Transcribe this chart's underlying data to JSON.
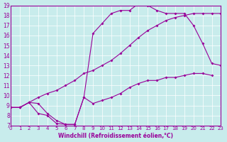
{
  "xlabel": "Windchill (Refroidissement éolien,°C)",
  "bg_color": "#c8ecec",
  "line_color": "#990099",
  "xlim": [
    0,
    23
  ],
  "ylim": [
    7,
    19
  ],
  "xticks": [
    0,
    1,
    2,
    3,
    4,
    5,
    6,
    7,
    8,
    9,
    10,
    11,
    12,
    13,
    14,
    15,
    16,
    17,
    18,
    19,
    20,
    21,
    22,
    23
  ],
  "yticks": [
    7,
    8,
    9,
    10,
    11,
    12,
    13,
    14,
    15,
    16,
    17,
    18,
    19
  ],
  "line1_x": [
    0,
    1,
    2,
    3,
    4,
    5,
    6,
    7,
    8,
    9,
    10,
    11,
    12,
    13,
    14,
    15,
    16,
    17,
    18,
    19,
    20,
    21,
    22
  ],
  "line1_y": [
    8.8,
    8.8,
    9.3,
    9.2,
    8.2,
    7.5,
    7.1,
    7.1,
    9.8,
    9.2,
    9.5,
    9.8,
    10.2,
    10.8,
    11.2,
    11.5,
    11.5,
    11.8,
    11.8,
    12.0,
    12.2,
    12.2,
    12.0
  ],
  "line2_x": [
    0,
    1,
    2,
    3,
    4,
    5,
    6,
    7,
    8,
    9,
    10,
    11,
    12,
    13,
    14,
    15,
    16,
    17,
    18,
    19,
    20,
    21,
    22,
    23
  ],
  "line2_y": [
    8.8,
    8.8,
    9.3,
    9.8,
    10.2,
    10.5,
    11.0,
    11.5,
    12.2,
    12.5,
    13.0,
    13.5,
    14.2,
    15.0,
    15.8,
    16.5,
    17.0,
    17.5,
    17.8,
    18.0,
    18.2,
    18.2,
    18.2,
    18.2
  ],
  "line3_x": [
    0,
    1,
    2,
    3,
    4,
    5,
    6,
    7,
    8,
    9,
    10,
    11,
    12,
    13,
    14,
    15,
    16,
    17,
    18,
    19,
    20,
    21,
    22,
    23
  ],
  "line3_y": [
    8.8,
    8.8,
    9.3,
    8.2,
    8.0,
    7.2,
    7.1,
    7.1,
    9.8,
    16.2,
    17.2,
    18.2,
    18.5,
    18.5,
    19.2,
    19.0,
    18.5,
    18.2,
    18.2,
    18.2,
    17.0,
    15.2,
    13.2,
    13.0
  ]
}
